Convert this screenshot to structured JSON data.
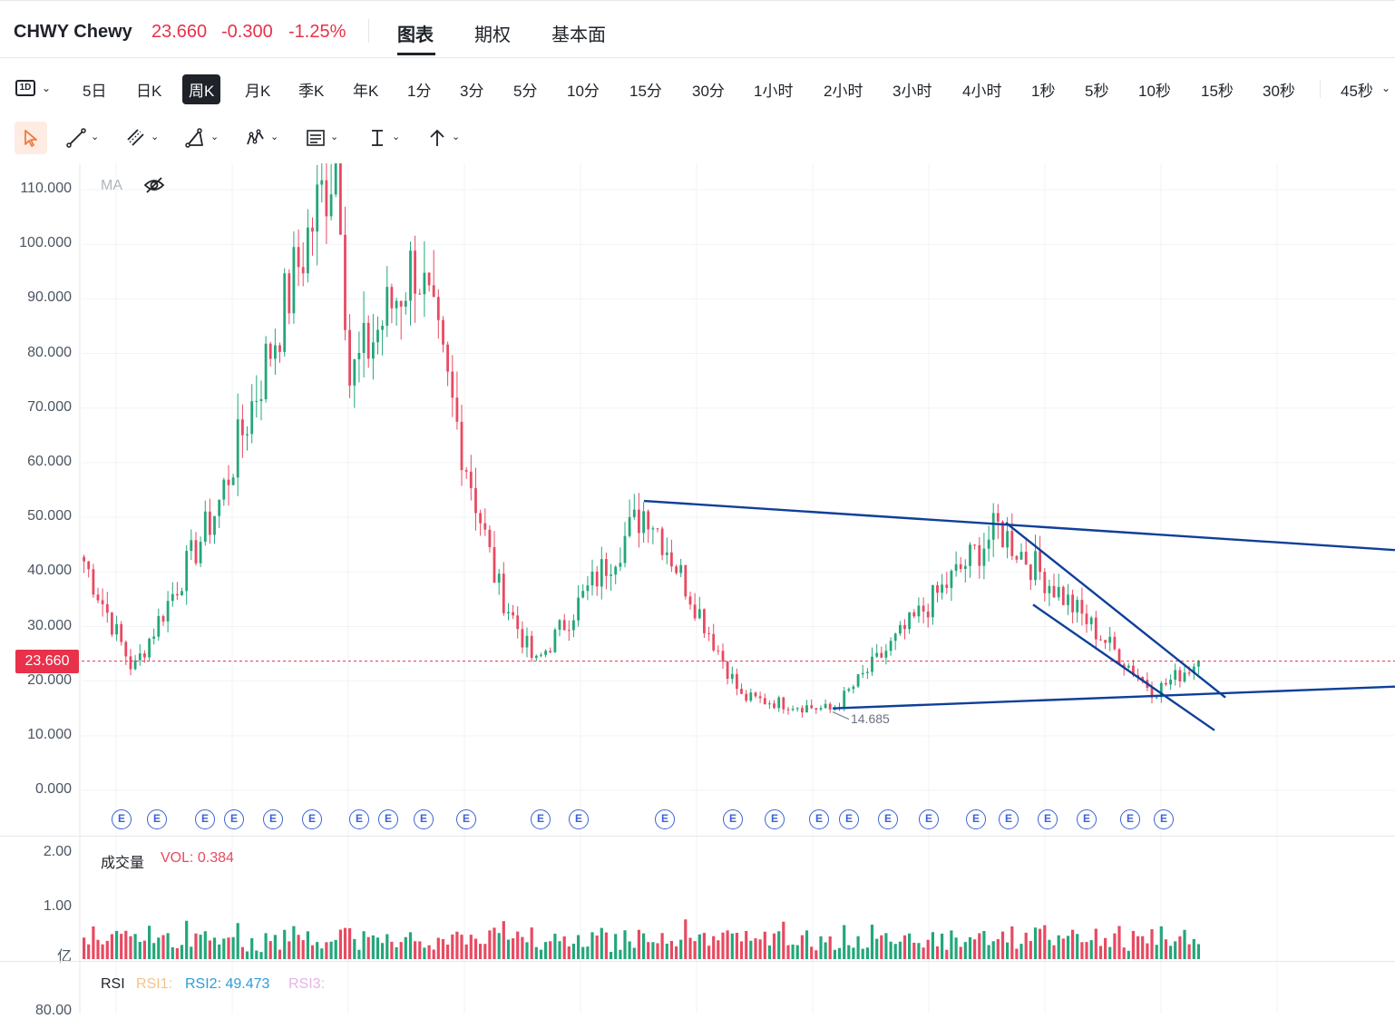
{
  "header": {
    "symbol": "CHWY Chewy",
    "last": "23.660",
    "change": "-0.300",
    "change_pct": "-1.25%",
    "tabs": [
      {
        "label": "图表"
      },
      {
        "label": "期权"
      },
      {
        "label": "基本面"
      }
    ],
    "active_tab": "图表"
  },
  "periods": {
    "selector_icon": "1D",
    "items": [
      "5日",
      "日K",
      "周K",
      "月K",
      "季K",
      "年K",
      "1分",
      "3分",
      "5分",
      "10分",
      "15分",
      "30分",
      "1小时",
      "2小时",
      "3小时",
      "4小时",
      "1秒",
      "5秒",
      "10秒",
      "15秒",
      "30秒",
      "45秒"
    ],
    "active": "周K"
  },
  "toolbar": {
    "tools": [
      "cursor-icon",
      "trend-line-icon",
      "parallel-channel-icon",
      "triangle-icon",
      "pattern-icon",
      "text-tool-icon",
      "measure-icon",
      "arrow-tool-icon"
    ]
  },
  "main_panel": {
    "ma_label": "MA",
    "y_ticks": [
      "110.000",
      "100.000",
      "90.000",
      "80.000",
      "70.000",
      "60.000",
      "50.000",
      "40.000",
      "30.000",
      "20.000",
      "10.000",
      "0.000"
    ],
    "current_price": "23.660",
    "low_marker": "14.685",
    "earnings_marker": "E",
    "earnings_count": 28,
    "colors": {
      "up": "#23a77a",
      "down": "#e84a62",
      "trendline": "#0f3f99",
      "price_line": "#e8314a"
    }
  },
  "volume_panel": {
    "title": "成交量",
    "vol_label": "VOL: 0.384",
    "y_ticks": [
      "2.00",
      "1.00"
    ],
    "unit": "亿"
  },
  "rsi_panel": {
    "title": "RSI",
    "rsi1": "RSI1:",
    "rsi2": "RSI2: 49.473",
    "rsi3": "RSI3:",
    "y_tick": "80.00"
  },
  "chart_data": {
    "type": "candlestick",
    "interval": "weekly",
    "ylim": [
      0,
      115
    ],
    "last_close": 23.66,
    "marked_low": 14.685,
    "approx_close_path": [
      {
        "label": "start",
        "close": 42
      },
      {
        "label": "early low",
        "close": 22
      },
      {
        "label": "rally",
        "close": 52
      },
      {
        "label": "all-time high",
        "close": 118
      },
      {
        "label": "pullback",
        "close": 75
      },
      {
        "label": "secondary high",
        "close": 97
      },
      {
        "label": "decline",
        "close": 38
      },
      {
        "label": "low",
        "close": 23
      },
      {
        "label": "bounce",
        "close": 52
      },
      {
        "label": "decline",
        "close": 17
      },
      {
        "label": "marked low",
        "close": 14.685
      },
      {
        "label": "rally",
        "close": 48
      },
      {
        "label": "channel decline",
        "close": 18
      },
      {
        "label": "last",
        "close": 23.66
      }
    ],
    "volume_max": 1.55,
    "volume_unit": "亿",
    "trendlines": [
      {
        "name": "upper resistance",
        "from": {
          "price": 53
        },
        "to": {
          "price": 44
        }
      },
      {
        "name": "lower support",
        "from": {
          "price": 15
        },
        "to": {
          "price": 19
        }
      },
      {
        "name": "channel top",
        "from": {
          "price": 49
        },
        "to": {
          "price": 17
        }
      },
      {
        "name": "channel bottom",
        "from": {
          "price": 34
        },
        "to": {
          "price": 11
        }
      }
    ]
  }
}
